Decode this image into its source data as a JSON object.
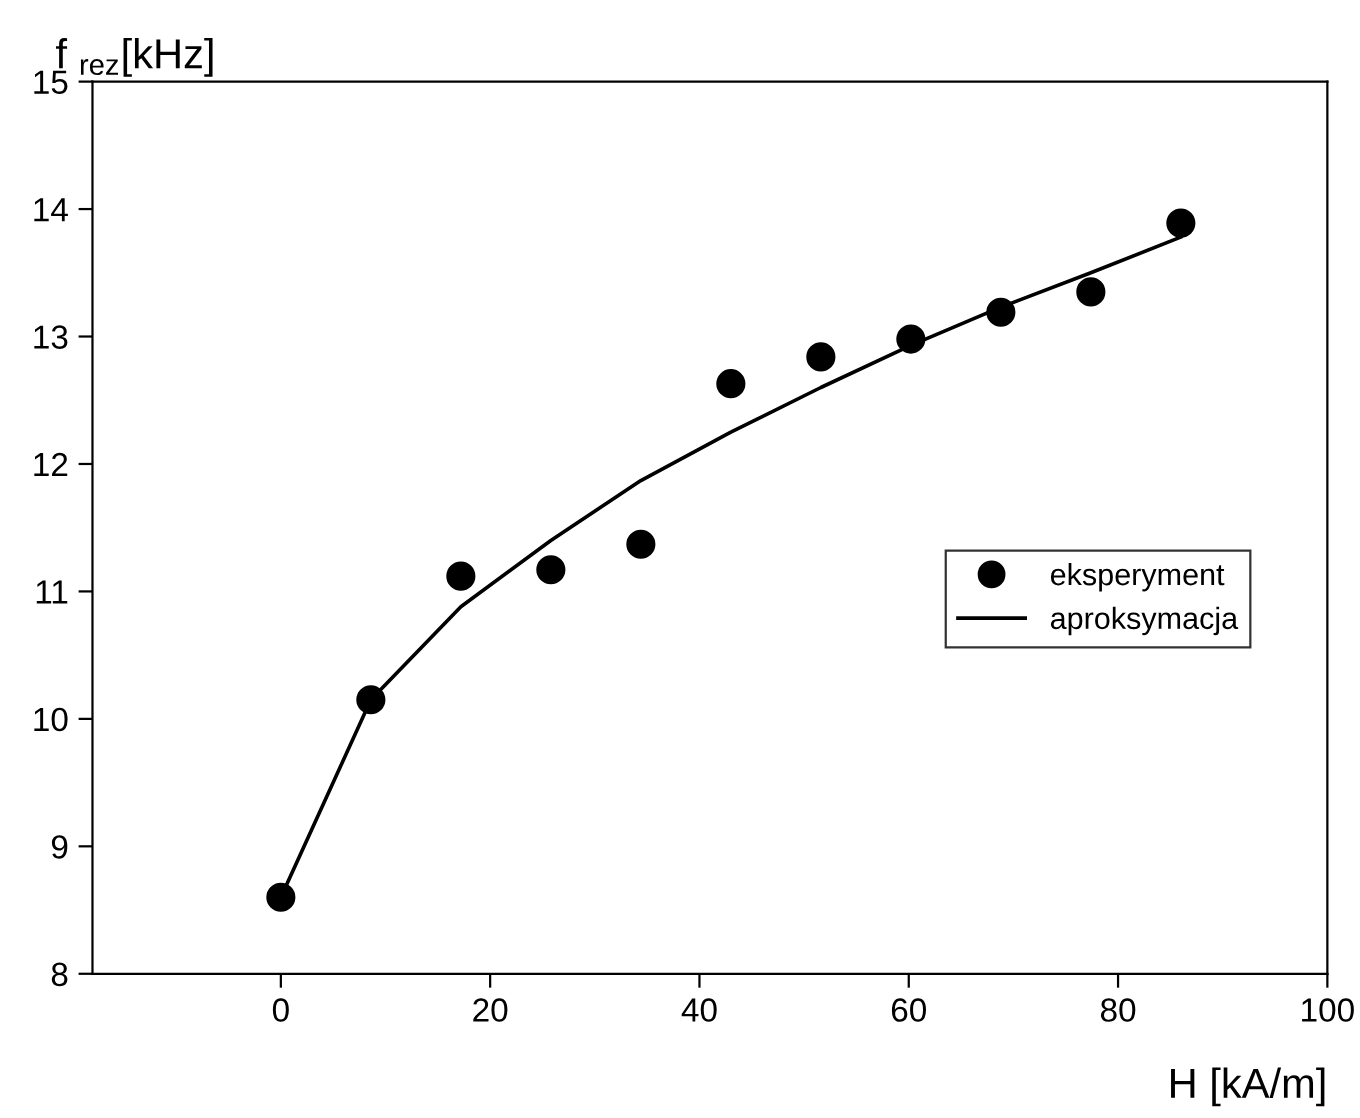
{
  "chart_data": {
    "type": "scatter",
    "xlabel": "H [kA/m]",
    "ylabel": "f $_{rez}$[kHz]",
    "xlim": [
      -18,
      100
    ],
    "xticks": [
      0,
      20,
      40,
      60,
      80,
      100
    ],
    "ylim": [
      8,
      15
    ],
    "yticks": [
      8,
      9,
      10,
      11,
      12,
      13,
      14,
      15
    ],
    "grid": false,
    "legend": "center right",
    "series": [
      {
        "name": "eksperyment",
        "marker": "circle",
        "color": "#000000",
        "x": [
          0,
          8.6,
          17.2,
          25.8,
          34.4,
          43,
          51.6,
          60.2,
          68.8,
          77.4,
          86
        ],
        "values": [
          8.6,
          10.15,
          11.12,
          11.17,
          11.37,
          12.63,
          12.84,
          12.98,
          13.19,
          13.35,
          13.89
        ]
      },
      {
        "name": "aproksymacja",
        "type": "line",
        "color": "#000000",
        "line_style": "solid",
        "x": [
          0,
          8.6,
          17.2,
          25.8,
          34.4,
          43,
          51.6,
          60.2,
          68.8,
          77.4,
          86
        ],
        "values": [
          8.6,
          10.15,
          10.88,
          11.4,
          11.87,
          12.25,
          12.6,
          12.93,
          13.23,
          13.5,
          13.78
        ]
      }
    ]
  }
}
